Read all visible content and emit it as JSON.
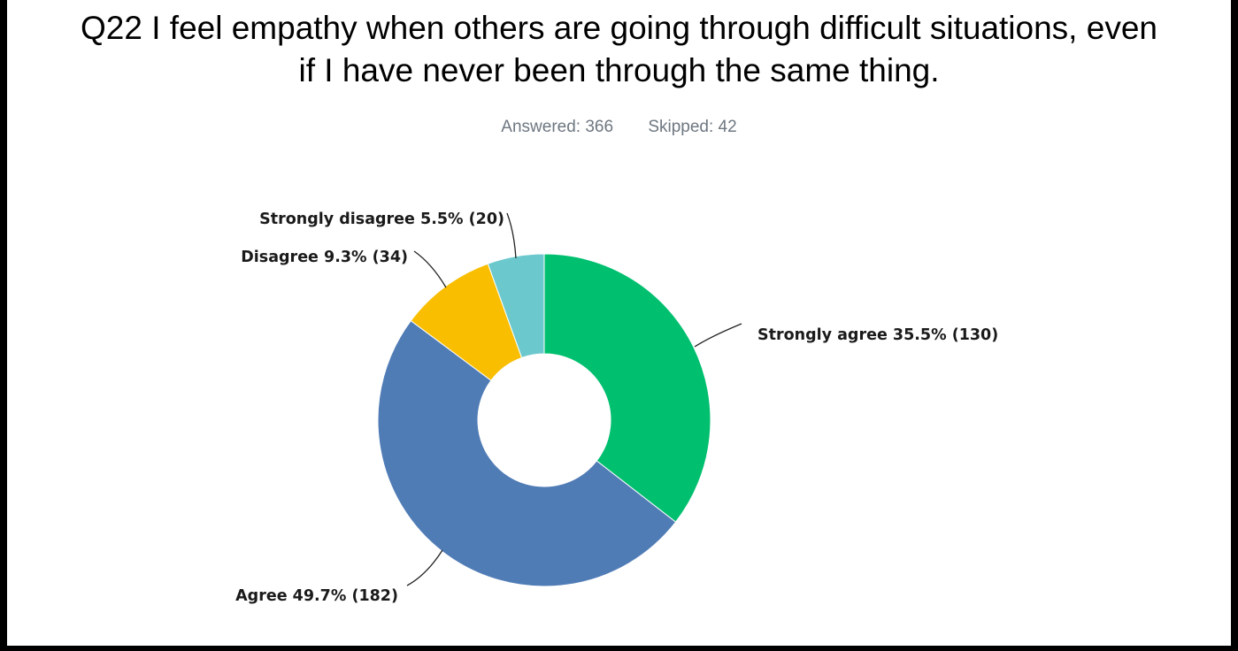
{
  "title_lines": [
    "Q22 I feel empathy when others are going through difficult situations, even",
    "if I have never been through the same thing."
  ],
  "stats": {
    "answered": "Answered: 366",
    "skipped": "Skipped: 42"
  },
  "chart_data": {
    "type": "pie",
    "donut": true,
    "title": "Q22 I feel empathy when others are going through difficult situations, even if I have never been through the same thing.",
    "categories": [
      "Strongly agree",
      "Agree",
      "Disagree",
      "Strongly disagree"
    ],
    "values": [
      35.5,
      49.7,
      9.3,
      5.5
    ],
    "counts": [
      130,
      182,
      34,
      20
    ],
    "labels": [
      "Strongly agree 35.5% (130)",
      "Agree 49.7% (182)",
      "Disagree 9.3% (34)",
      "Strongly disagree 5.5% (20)"
    ],
    "colors": [
      "#00bf6f",
      "#507cb6",
      "#f9be00",
      "#6bc8cd"
    ]
  }
}
